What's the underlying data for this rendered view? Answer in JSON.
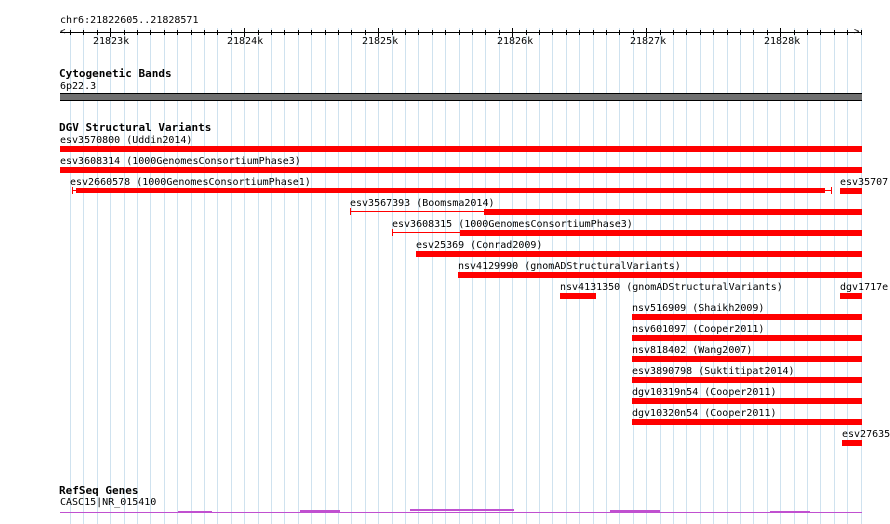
{
  "ruler": {
    "position_label": "chr6:21822605..21828571",
    "tick_labels": [
      "21823k",
      "21824k",
      "21825k",
      "21826k",
      "21827k",
      "21828k"
    ]
  },
  "tracks": {
    "cytoband": {
      "title": "Cytogenetic Bands",
      "band_label": "6p22.3"
    },
    "dgv": {
      "title": "DGV Structural Variants",
      "features": [
        "esv3570800 (Uddin2014)",
        "esv3608314 (1000GenomesConsortiumPhase3)",
        "esv2660578 (1000GenomesConsortiumPhase1)",
        "esv35707",
        "esv3567393 (Boomsma2014)",
        "esv3608315 (1000GenomesConsortiumPhase3)",
        "esv25369 (Conrad2009)",
        "nsv4129990 (gnomADStructuralVariants)",
        "nsv4131350 (gnomADStructuralVariants)",
        "dgv1717e",
        "nsv516909 (Shaikh2009)",
        "nsv601097 (Cooper2011)",
        "nsv818402 (Wang2007)",
        "esv3890798 (Suktitipat2014)",
        "dgv10319n54 (Cooper2011)",
        "dgv10320n54 (Cooper2011)",
        "esv27635"
      ]
    },
    "refseq": {
      "title": "RefSeq Genes",
      "gene_label": "CASC15|NR_015410"
    }
  },
  "colors": {
    "feature": "#ff0000",
    "grid": "#cfe2ef",
    "band": "#707070",
    "gene": "#c050d0"
  }
}
